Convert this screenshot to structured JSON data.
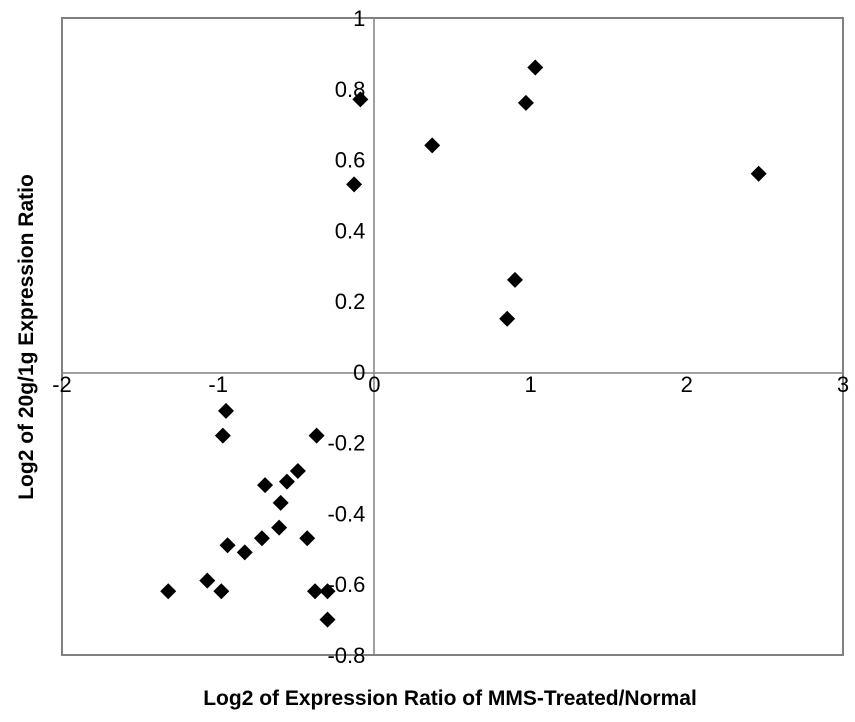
{
  "chart_data": {
    "type": "scatter",
    "title": "",
    "xlabel": "Log2 of Expression Ratio of MMS-Treated/Normal",
    "ylabel": "Log2 of 20g/1g Expression Ratio",
    "xlim": [
      -2,
      3
    ],
    "ylim": [
      -0.8,
      1
    ],
    "xticks": [
      -2,
      -1,
      0,
      1,
      2,
      3
    ],
    "yticks": [
      -0.8,
      -0.6,
      -0.4,
      -0.2,
      0,
      0.2,
      0.4,
      0.6,
      0.8,
      1
    ],
    "xtick_labels": [
      "-2",
      "-1",
      "0",
      "1",
      "2",
      "3"
    ],
    "ytick_labels": [
      "-0.8",
      "-0.6",
      "-0.4",
      "-0.2",
      "0",
      "0.2",
      "0.4",
      "0.6",
      "0.8",
      "1"
    ],
    "grid": false,
    "legend": "none",
    "marker": "diamond",
    "marker_color": "#000000",
    "series": [
      {
        "points": [
          [
            -0.09,
            0.77
          ],
          [
            -0.13,
            0.53
          ],
          [
            0.37,
            0.64
          ],
          [
            0.97,
            0.76
          ],
          [
            1.03,
            0.86
          ],
          [
            2.46,
            0.56
          ],
          [
            0.9,
            0.26
          ],
          [
            0.85,
            0.15
          ],
          [
            -0.95,
            -0.11
          ],
          [
            -0.97,
            -0.18
          ],
          [
            -0.37,
            -0.18
          ],
          [
            -0.7,
            -0.32
          ],
          [
            -0.49,
            -0.28
          ],
          [
            -0.56,
            -0.31
          ],
          [
            -0.6,
            -0.37
          ],
          [
            -0.61,
            -0.44
          ],
          [
            -0.72,
            -0.47
          ],
          [
            -0.43,
            -0.47
          ],
          [
            -0.94,
            -0.49
          ],
          [
            -0.83,
            -0.51
          ],
          [
            -1.07,
            -0.59
          ],
          [
            -0.98,
            -0.62
          ],
          [
            -1.32,
            -0.62
          ],
          [
            -0.38,
            -0.62
          ],
          [
            -0.3,
            -0.62
          ],
          [
            -0.3,
            -0.7
          ]
        ]
      }
    ]
  }
}
